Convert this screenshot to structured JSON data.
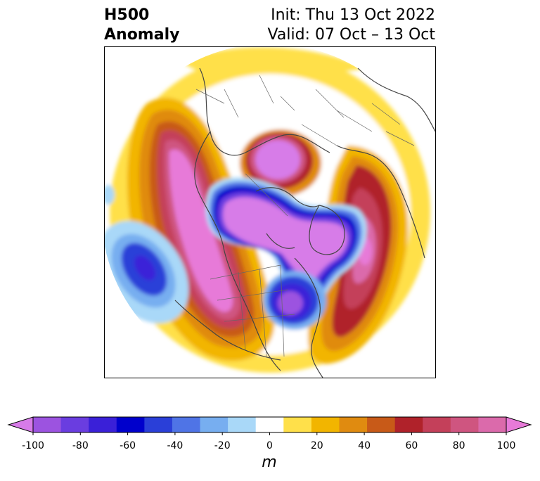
{
  "title": {
    "line1": "H500",
    "line2": "Anomaly",
    "init": "Init: Thu 13 Oct 2022",
    "valid": "Valid: 07 Oct – 13 Oct"
  },
  "colorbar": {
    "units": "m",
    "ticks": [
      "-100",
      "-80",
      "-60",
      "-40",
      "-20",
      "0",
      "20",
      "40",
      "60",
      "80",
      "100"
    ],
    "colors": [
      "#d77be8",
      "#9c53e0",
      "#6a3de0",
      "#3a20d8",
      "#0000cc",
      "#2a3fd8",
      "#4f74e6",
      "#77aef0",
      "#a9d8f8",
      "#ffffff",
      "#ffe04a",
      "#f2b500",
      "#e08b10",
      "#c85a18",
      "#b0222a",
      "#c4405a",
      "#cf5580",
      "#db6aab",
      "#e77ad8"
    ]
  },
  "map": {
    "projection": "north-polar-stereographic",
    "variable": "500 hPa geopotential height anomaly",
    "features": [
      {
        "name": "ridge-west-north-america",
        "anomaly_m": 100
      },
      {
        "name": "trough-eastern-north-america",
        "anomaly_m": -70
      },
      {
        "name": "trough-greenland-north-atlantic",
        "anomaly_m": -100
      },
      {
        "name": "trough-hudson-bay-arctic",
        "anomaly_m": -100
      },
      {
        "name": "ridge-eastern-atlantic-europe",
        "anomaly_m": 90
      },
      {
        "name": "ridge-siberia-arctic",
        "anomaly_m": 100
      },
      {
        "name": "trough-northeast-pacific",
        "anomaly_m": -60
      }
    ]
  }
}
